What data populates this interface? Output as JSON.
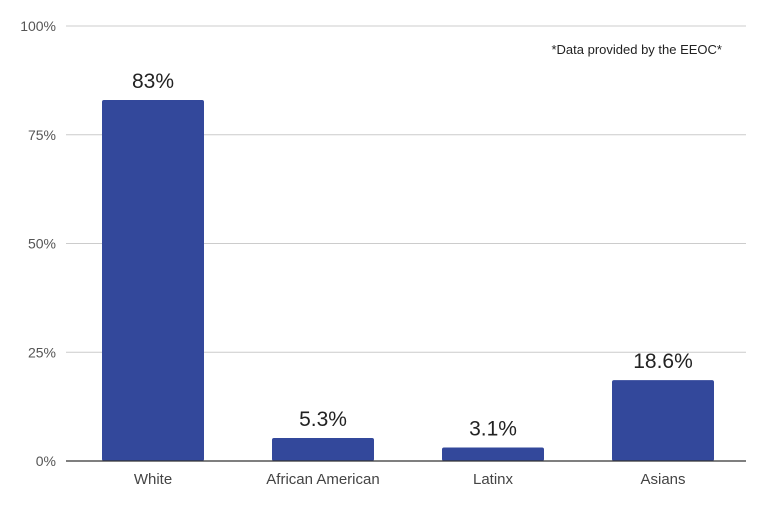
{
  "chart_data": {
    "type": "bar",
    "categories": [
      "White",
      "African American",
      "Latinx",
      "Asians"
    ],
    "values": [
      83,
      5.3,
      3.1,
      18.6
    ],
    "data_labels": [
      "83%",
      "5.3%",
      "3.1%",
      "18.6%"
    ],
    "ylim": [
      0,
      100
    ],
    "yticks": [
      0,
      25,
      50,
      75,
      100
    ],
    "ytick_labels": [
      "0%",
      "25%",
      "50%",
      "75%",
      "100%"
    ],
    "annotation": "*Data provided by the EEOC*",
    "grid": true,
    "bar_color": "#33489b"
  }
}
